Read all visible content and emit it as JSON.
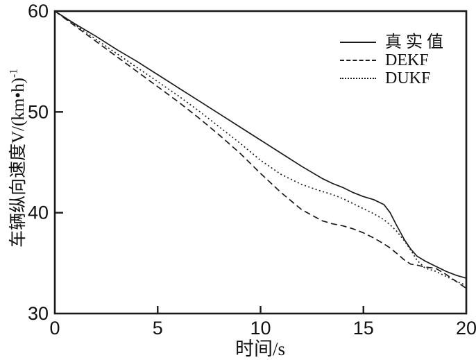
{
  "figure": {
    "background": "#ffffff",
    "ink": "#1a1a1a",
    "ylabel_base": "车辆纵向速度V/(km•h)",
    "ylabel_exponent": "-1"
  },
  "chart_data": {
    "type": "line",
    "title": "",
    "xlabel": "时间/s",
    "ylabel": "车辆纵向速度V/(km•h)^-1",
    "xlim": [
      0,
      20
    ],
    "ylim": [
      30,
      60
    ],
    "x_ticks": [
      0,
      5,
      10,
      15,
      20
    ],
    "y_ticks": [
      30,
      40,
      50,
      60
    ],
    "grid": false,
    "legend_position": "upper-right",
    "x": [
      0,
      1,
      2,
      3,
      4,
      5,
      6,
      7,
      8,
      9,
      10,
      11,
      12,
      13,
      13.5,
      14,
      14.5,
      15,
      15.5,
      16,
      16.3,
      16.6,
      17,
      17.3,
      17.6,
      18,
      18.5,
      19,
      19.5,
      20
    ],
    "series": [
      {
        "name": "真 实 值",
        "style": "solid",
        "values": [
          60,
          58.7,
          57.5,
          56.2,
          55.0,
          53.7,
          52.4,
          51.1,
          49.8,
          48.5,
          47.2,
          45.9,
          44.6,
          43.4,
          42.9,
          42.5,
          42.0,
          41.6,
          41.3,
          40.8,
          40.0,
          38.8,
          37.3,
          36.4,
          35.7,
          35.2,
          34.7,
          34.2,
          33.8,
          33.5
        ]
      },
      {
        "name": "DEKF",
        "style": "dashed",
        "values": [
          60,
          58.5,
          57.0,
          55.5,
          54.0,
          52.5,
          51.0,
          49.4,
          47.7,
          45.9,
          43.9,
          42.0,
          40.3,
          39.2,
          38.9,
          38.7,
          38.4,
          38.0,
          37.5,
          36.9,
          36.5,
          36.0,
          35.3,
          34.9,
          34.8,
          34.6,
          34.5,
          33.9,
          33.2,
          32.5
        ]
      },
      {
        "name": "DUKF",
        "style": "dotted",
        "values": [
          60,
          58.6,
          57.2,
          55.8,
          54.4,
          53.0,
          51.6,
          50.1,
          48.5,
          46.9,
          45.2,
          43.8,
          42.8,
          42.1,
          41.8,
          41.4,
          40.9,
          40.4,
          39.9,
          39.3,
          38.8,
          38.2,
          37.2,
          36.3,
          35.3,
          34.5,
          34.2,
          33.7,
          33.2,
          32.8
        ]
      }
    ]
  }
}
